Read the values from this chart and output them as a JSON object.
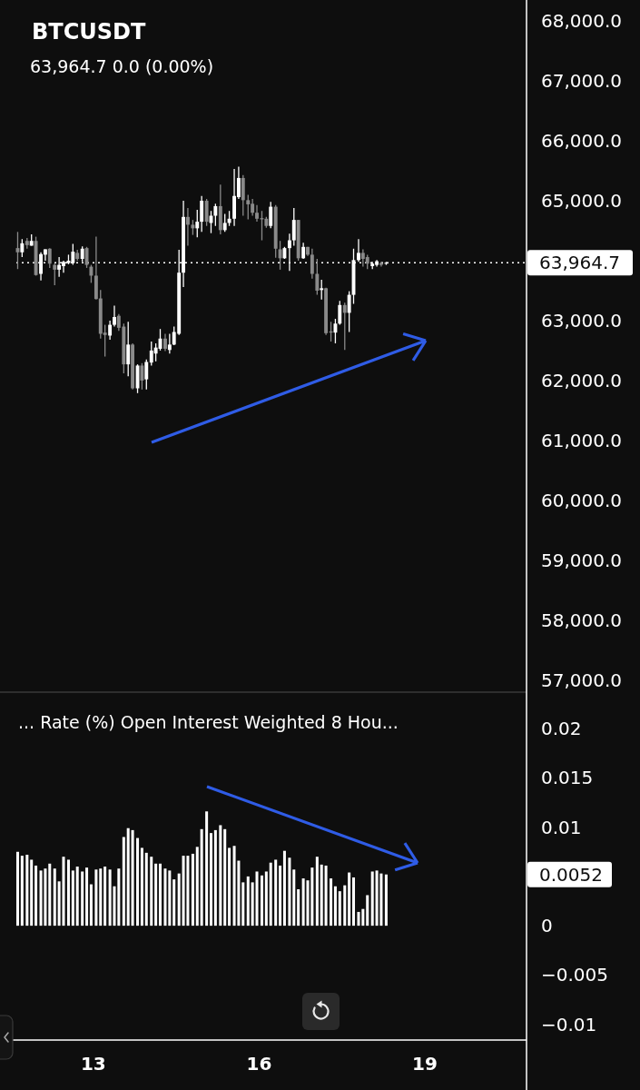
{
  "chart_data": [
    {
      "type": "candlestick",
      "title": "BTCUSDT",
      "subtitle": "63,964.7 0.0 (0.00%)",
      "x": [
        11.63,
        11.71,
        11.8,
        11.88,
        11.96,
        12.05,
        12.13,
        12.21,
        12.3,
        12.38,
        12.46,
        12.55,
        12.63,
        12.71,
        12.8,
        12.88,
        12.96,
        13.05,
        13.13,
        13.21,
        13.3,
        13.38,
        13.46,
        13.55,
        13.63,
        13.71,
        13.8,
        13.88,
        13.96,
        14.05,
        14.13,
        14.21,
        14.3,
        14.38,
        14.46,
        14.55,
        14.63,
        14.71,
        14.8,
        14.88,
        14.96,
        15.05,
        15.13,
        15.21,
        15.3,
        15.38,
        15.46,
        15.55,
        15.63,
        15.71,
        15.8,
        15.88,
        15.96,
        16.05,
        16.13,
        16.21,
        16.3,
        16.38,
        16.46,
        16.55,
        16.63,
        16.71,
        16.8,
        16.88,
        16.96,
        17.05,
        17.13,
        17.21,
        17.3,
        17.38,
        17.46,
        17.55,
        17.63,
        17.71,
        17.8,
        17.88,
        17.96,
        18.05,
        18.13,
        18.21,
        18.3
      ],
      "ohlc": [
        [
          64210,
          64480,
          63860,
          64140
        ],
        [
          64140,
          64360,
          64060,
          64290
        ],
        [
          64330,
          64380,
          64200,
          64260
        ],
        [
          64250,
          64440,
          64250,
          64330
        ],
        [
          64330,
          64400,
          63750,
          63760
        ],
        [
          63780,
          64140,
          63670,
          64110
        ],
        [
          64100,
          64190,
          64000,
          64190
        ],
        [
          64200,
          64210,
          63880,
          63950
        ],
        [
          63930,
          63950,
          63590,
          63850
        ],
        [
          63850,
          64060,
          63730,
          63930
        ],
        [
          63910,
          64000,
          63800,
          63980
        ],
        [
          63960,
          64100,
          63940,
          64000
        ],
        [
          63960,
          64280,
          63930,
          64150
        ],
        [
          64130,
          64180,
          64000,
          64030
        ],
        [
          64030,
          64240,
          63980,
          64200
        ],
        [
          64210,
          64230,
          63880,
          63930
        ],
        [
          63900,
          63930,
          63630,
          63750
        ],
        [
          63750,
          64400,
          63350,
          63360
        ],
        [
          63370,
          63510,
          62700,
          62780
        ],
        [
          62800,
          62930,
          62400,
          62760
        ],
        [
          62750,
          63000,
          62680,
          62930
        ],
        [
          62930,
          63250,
          62900,
          63060
        ],
        [
          63080,
          63110,
          62830,
          62880
        ],
        [
          62900,
          62950,
          62120,
          62270
        ],
        [
          62270,
          62980,
          62070,
          62600
        ],
        [
          62600,
          62620,
          61850,
          61870
        ],
        [
          61870,
          62270,
          61790,
          62250
        ],
        [
          62250,
          62290,
          61850,
          62000
        ],
        [
          62020,
          62350,
          61850,
          62310
        ],
        [
          62300,
          62650,
          62250,
          62500
        ],
        [
          62450,
          62620,
          62320,
          62550
        ],
        [
          62530,
          62860,
          62500,
          62700
        ],
        [
          62700,
          62780,
          62490,
          62530
        ],
        [
          62510,
          62780,
          62450,
          62600
        ],
        [
          62600,
          62900,
          62590,
          62810
        ],
        [
          62780,
          64180,
          62760,
          63800
        ],
        [
          63800,
          65000,
          63560,
          64730
        ],
        [
          64730,
          64880,
          64250,
          64600
        ],
        [
          64600,
          64680,
          64430,
          64540
        ],
        [
          64540,
          64850,
          64390,
          64650
        ],
        [
          64650,
          65080,
          64480,
          65000
        ],
        [
          65000,
          65030,
          64580,
          64650
        ],
        [
          64630,
          64830,
          64460,
          64750
        ],
        [
          64750,
          64950,
          64580,
          64910
        ],
        [
          64910,
          65270,
          64440,
          64510
        ],
        [
          64510,
          64780,
          64480,
          64630
        ],
        [
          64630,
          64830,
          64580,
          64700
        ],
        [
          64700,
          65530,
          64580,
          65080
        ],
        [
          65060,
          65570,
          65030,
          65380
        ],
        [
          65380,
          65430,
          64750,
          65010
        ],
        [
          65010,
          65100,
          64690,
          64940
        ],
        [
          64950,
          65030,
          64750,
          64800
        ],
        [
          64800,
          64930,
          64650,
          64700
        ],
        [
          64710,
          64830,
          64340,
          64690
        ],
        [
          64700,
          64730,
          64550,
          64580
        ],
        [
          64580,
          64980,
          64540,
          64900
        ],
        [
          64900,
          64930,
          64050,
          64200
        ],
        [
          64190,
          64330,
          63850,
          64040
        ],
        [
          64040,
          64230,
          64030,
          64210
        ],
        [
          64210,
          64450,
          63830,
          64340
        ],
        [
          64340,
          64880,
          64250,
          64680
        ],
        [
          64680,
          64680,
          64000,
          64040
        ],
        [
          64040,
          64300,
          64030,
          64230
        ],
        [
          64230,
          64230,
          64080,
          64100
        ],
        [
          64100,
          64200,
          63700,
          63780
        ],
        [
          63780,
          64030,
          63430,
          63500
        ],
        [
          63510,
          63680,
          63350,
          63540
        ],
        [
          63540,
          63550,
          62760,
          62790
        ],
        [
          62820,
          62980,
          62650,
          62800
        ],
        [
          62800,
          63030,
          62620,
          62950
        ],
        [
          62950,
          63330,
          62930,
          63260
        ],
        [
          63260,
          63300,
          62510,
          63130
        ],
        [
          63130,
          63490,
          62810,
          63430
        ],
        [
          63430,
          64200,
          63280,
          64010
        ],
        [
          64010,
          64360,
          63980,
          64130
        ],
        [
          64130,
          64190,
          63900,
          64030
        ],
        [
          64060,
          64100,
          63860,
          63950
        ],
        [
          63910,
          63980,
          63860,
          63950
        ],
        [
          63930,
          64010,
          63900,
          63990
        ],
        [
          63960,
          63980,
          63900,
          63930
        ],
        [
          63960,
          63980,
          63930,
          63964.7
        ]
      ],
      "colors": [
        "#8a8a8a",
        "#ffffff",
        "#8a8a8a",
        "#ffffff",
        "#8a8a8a",
        "#ffffff",
        "#ffffff",
        "#8a8a8a",
        "#8a8a8a",
        "#ffffff",
        "#ffffff",
        "#ffffff",
        "#ffffff",
        "#8a8a8a",
        "#ffffff",
        "#8a8a8a",
        "#8a8a8a",
        "#8a8a8a",
        "#8a8a8a",
        "#8a8a8a",
        "#ffffff",
        "#ffffff",
        "#8a8a8a",
        "#8a8a8a",
        "#ffffff",
        "#8a8a8a",
        "#ffffff",
        "#8a8a8a",
        "#ffffff",
        "#ffffff",
        "#ffffff",
        "#ffffff",
        "#8a8a8a",
        "#ffffff",
        "#ffffff",
        "#ffffff",
        "#ffffff",
        "#8a8a8a",
        "#8a8a8a",
        "#ffffff",
        "#ffffff",
        "#8a8a8a",
        "#ffffff",
        "#ffffff",
        "#8a8a8a",
        "#ffffff",
        "#ffffff",
        "#ffffff",
        "#ffffff",
        "#8a8a8a",
        "#8a8a8a",
        "#8a8a8a",
        "#8a8a8a",
        "#8a8a8a",
        "#8a8a8a",
        "#ffffff",
        "#8a8a8a",
        "#8a8a8a",
        "#ffffff",
        "#ffffff",
        "#ffffff",
        "#8a8a8a",
        "#ffffff",
        "#8a8a8a",
        "#8a8a8a",
        "#8a8a8a",
        "#ffffff",
        "#8a8a8a",
        "#8a8a8a",
        "#ffffff",
        "#ffffff",
        "#8a8a8a",
        "#ffffff",
        "#ffffff",
        "#ffffff",
        "#8a8a8a",
        "#8a8a8a",
        "#ffffff",
        "#ffffff",
        "#8a8a8a",
        "#ffffff"
      ],
      "xlim": [
        11.31,
        20.84
      ],
      "ylim": [
        56800,
        68350
      ],
      "yticks": [
        {
          "value": 68000,
          "label": "68,000.0"
        },
        {
          "value": 67000,
          "label": "67,000.0"
        },
        {
          "value": 66000,
          "label": "66,000.0"
        },
        {
          "value": 65000,
          "label": "65,000.0"
        },
        {
          "value": 63000,
          "label": "63,000.0"
        },
        {
          "value": 62000,
          "label": "62,000.0"
        },
        {
          "value": 61000,
          "label": "61,000.0"
        },
        {
          "value": 60000,
          "label": "60,000.0"
        },
        {
          "value": 59000,
          "label": "59,000.0"
        },
        {
          "value": 58000,
          "label": "58,000.0"
        },
        {
          "value": 57000,
          "label": "57,000.0"
        }
      ],
      "tick_labels": "y",
      "ref_lines": [
        {
          "axis": "y",
          "value": 63964.7,
          "label": "63,964.7",
          "color": "#ffffff",
          "line_style": "dotted"
        }
      ]
    },
    {
      "type": "bar",
      "title": "... Rate (%) Open Interest Weighted 8 Hou...",
      "x": [
        11.63,
        11.71,
        11.8,
        11.88,
        11.96,
        12.05,
        12.13,
        12.21,
        12.3,
        12.38,
        12.46,
        12.55,
        12.63,
        12.71,
        12.8,
        12.88,
        12.96,
        13.05,
        13.13,
        13.21,
        13.3,
        13.38,
        13.46,
        13.55,
        13.63,
        13.71,
        13.8,
        13.88,
        13.96,
        14.05,
        14.13,
        14.21,
        14.3,
        14.38,
        14.46,
        14.55,
        14.63,
        14.71,
        14.8,
        14.88,
        14.96,
        15.05,
        15.13,
        15.21,
        15.3,
        15.38,
        15.46,
        15.55,
        15.63,
        15.71,
        15.8,
        15.88,
        15.96,
        16.05,
        16.13,
        16.21,
        16.3,
        16.38,
        16.46,
        16.55,
        16.63,
        16.71,
        16.8,
        16.88,
        16.96,
        17.05,
        17.13,
        17.21,
        17.3,
        17.38,
        17.46,
        17.55,
        17.63,
        17.71,
        17.8,
        17.88,
        17.96,
        18.05,
        18.13,
        18.21,
        18.3
      ],
      "values": [
        0.0075,
        0.0071,
        0.0072,
        0.0067,
        0.0061,
        0.0056,
        0.0058,
        0.0063,
        0.0058,
        0.0045,
        0.007,
        0.0067,
        0.0056,
        0.006,
        0.0055,
        0.0059,
        0.0042,
        0.0057,
        0.0058,
        0.006,
        0.0057,
        0.004,
        0.0058,
        0.009,
        0.0099,
        0.0097,
        0.0089,
        0.0079,
        0.0074,
        0.007,
        0.0063,
        0.0063,
        0.0058,
        0.0056,
        0.0047,
        0.0053,
        0.0071,
        0.0071,
        0.0073,
        0.008,
        0.0098,
        0.0116,
        0.0094,
        0.0097,
        0.0102,
        0.0098,
        0.0079,
        0.0081,
        0.0066,
        0.0044,
        0.005,
        0.0044,
        0.0055,
        0.0051,
        0.0055,
        0.0064,
        0.0067,
        0.0061,
        0.0076,
        0.0069,
        0.0057,
        0.0037,
        0.0048,
        0.0046,
        0.0059,
        0.007,
        0.0062,
        0.0061,
        0.0048,
        0.004,
        0.0035,
        0.0041,
        0.0054,
        0.0049,
        0.0014,
        0.0017,
        0.0031,
        0.0055,
        0.0056,
        0.0053,
        0.0052
      ],
      "color": "#ffffff",
      "xlim": [
        11.31,
        20.84
      ],
      "xticks": [
        13,
        16,
        19
      ],
      "ylim": [
        -0.0116,
        0.0237
      ],
      "yticks": [
        0.02,
        0.015,
        0.01,
        0,
        {
          "value": -0.005,
          "label": "−0.005"
        },
        {
          "value": -0.01,
          "label": "−0.01"
        }
      ],
      "annotations": [
        "0.0052"
      ]
    }
  ]
}
